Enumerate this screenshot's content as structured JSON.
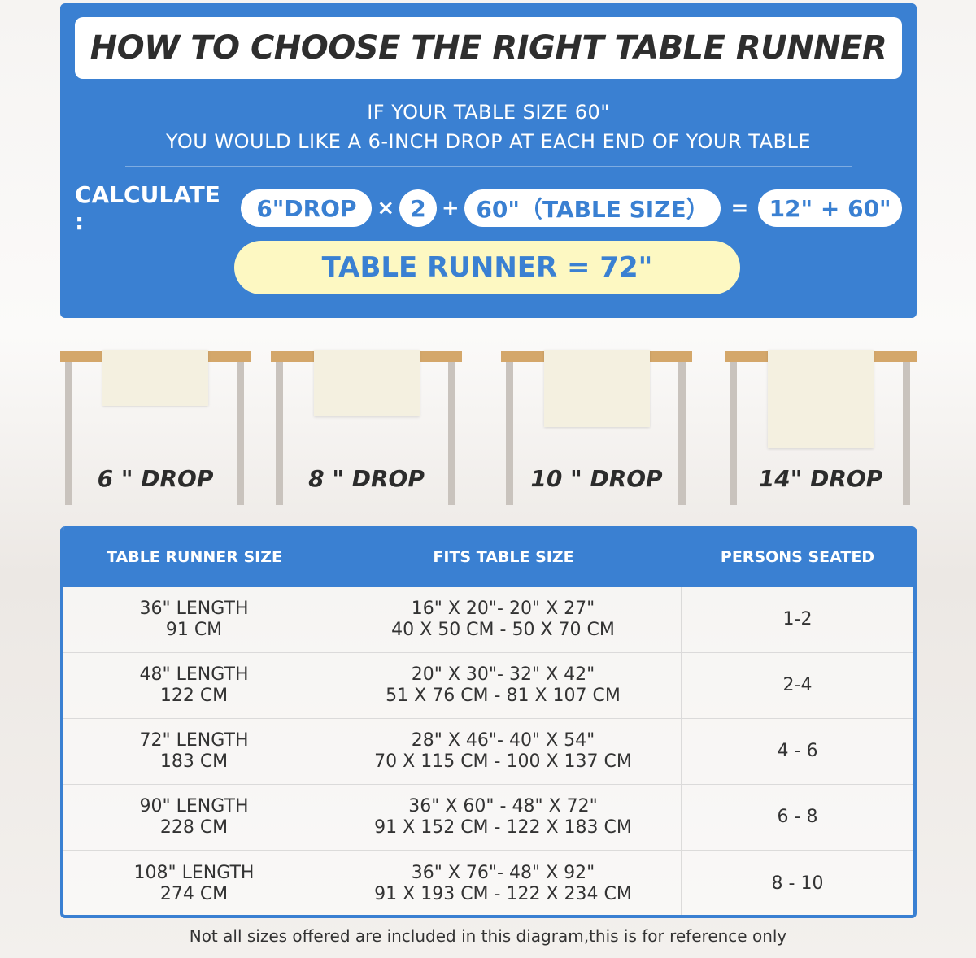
{
  "title": "HOW TO CHOOSE THE RIGHT TABLE RUNNER",
  "intro": {
    "line1": "IF YOUR TABLE SIZE 60\"",
    "line2": "YOU WOULD LIKE A 6-INCH DROP AT EACH END OF YOUR TABLE"
  },
  "calc": {
    "label": "CALCULATE :",
    "drop": "6\"DROP",
    "times": "×",
    "multiplier": "2",
    "plus": "+",
    "table": "60\"（TABLE SIZE）",
    "equals": "=",
    "sum": "12\" + 60\"",
    "result": "TABLE RUNNER = 72\""
  },
  "drops": [
    {
      "label": "6 \" DROP",
      "inches": 6
    },
    {
      "label": "8 \" DROP",
      "inches": 8
    },
    {
      "label": "10 \" DROP",
      "inches": 10
    },
    {
      "label": "14\" DROP",
      "inches": 14
    }
  ],
  "table": {
    "headers": [
      "TABLE RUNNER SIZE",
      "FITS TABLE SIZE",
      "PERSONS SEATED"
    ],
    "rows": [
      {
        "size": "36\" LENGTH",
        "size_cm": "91 CM",
        "fits": "16\" X 20\"- 20\" X 27\"",
        "fits_cm": "40 X 50 CM - 50 X 70 CM",
        "persons": "1-2"
      },
      {
        "size": "48\" LENGTH",
        "size_cm": "122 CM",
        "fits": "20\" X 30\"- 32\" X 42\"",
        "fits_cm": "51 X 76 CM - 81 X 107 CM",
        "persons": "2-4"
      },
      {
        "size": "72\" LENGTH",
        "size_cm": "183 CM",
        "fits": "28\" X 46\"- 40\" X 54\"",
        "fits_cm": "70 X 115 CM - 100 X 137 CM",
        "persons": "4 - 6"
      },
      {
        "size": "90\" LENGTH",
        "size_cm": "228 CM",
        "fits": "36\" X 60\" - 48\" X 72\"",
        "fits_cm": "91 X 152 CM - 122 X 183 CM",
        "persons": "6 - 8"
      },
      {
        "size": "108\" LENGTH",
        "size_cm": "274 CM",
        "fits": "36\" X 76\"- 48\" X 92\"",
        "fits_cm": "91 X 193 CM - 122 X 234 CM",
        "persons": "8 - 10"
      }
    ]
  },
  "note": "Not all sizes offered are included in this diagram,this is for reference only",
  "colors": {
    "primary": "#3a80d2",
    "highlight": "#fdf8c2",
    "tabletop": "#d4a76a",
    "runner": "#f4f0e0"
  }
}
